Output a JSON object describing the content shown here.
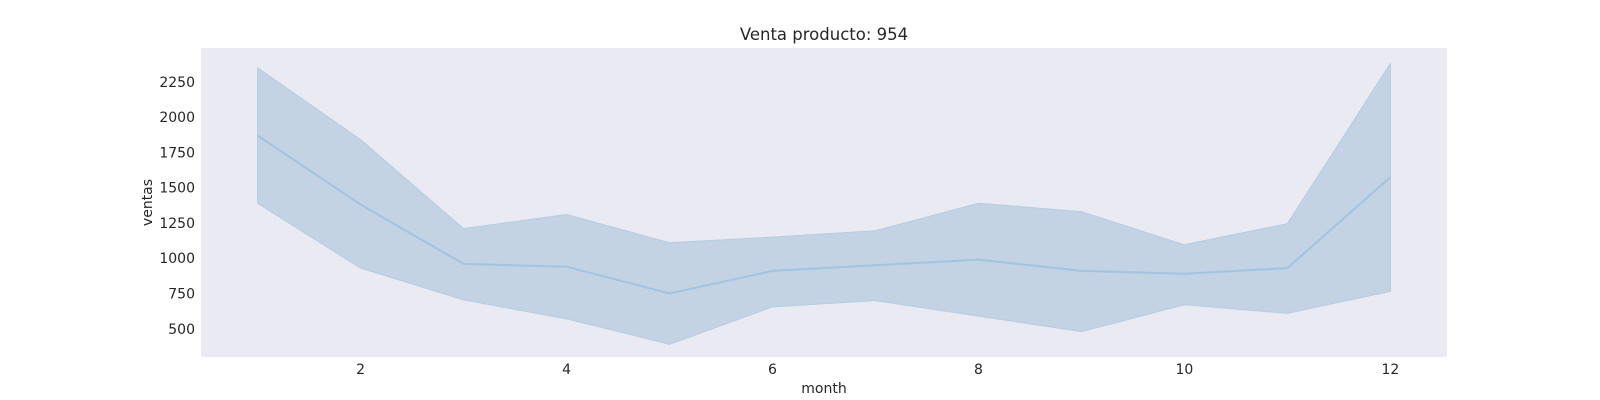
{
  "chart_data": {
    "type": "line",
    "title": "Venta producto: 954",
    "xlabel": "month",
    "ylabel": "ventas",
    "xlim": [
      0.45,
      12.55
    ],
    "ylim": [
      300,
      2490
    ],
    "x_ticks": [
      2,
      4,
      6,
      8,
      10,
      12
    ],
    "y_ticks": [
      500,
      750,
      1000,
      1250,
      1500,
      1750,
      2000,
      2250
    ],
    "grid": false,
    "x": [
      1,
      2,
      3,
      4,
      5,
      6,
      7,
      8,
      9,
      10,
      11,
      12
    ],
    "series": [
      {
        "values": [
          1870,
          1380,
          960,
          940,
          750,
          910,
          950,
          990,
          910,
          890,
          930,
          1575
        ],
        "ci_upper": [
          2350,
          1840,
          1210,
          1310,
          1110,
          1150,
          1195,
          1390,
          1330,
          1095,
          1245,
          2380
        ],
        "ci_lower": [
          1390,
          930,
          705,
          570,
          390,
          655,
          700,
          590,
          480,
          670,
          610,
          765
        ]
      }
    ],
    "colors": {
      "plot_background": "#eaeaf2",
      "line": "#a1c4e0",
      "band": "#c3d3e4",
      "band_edge": "#b3cde3"
    }
  }
}
